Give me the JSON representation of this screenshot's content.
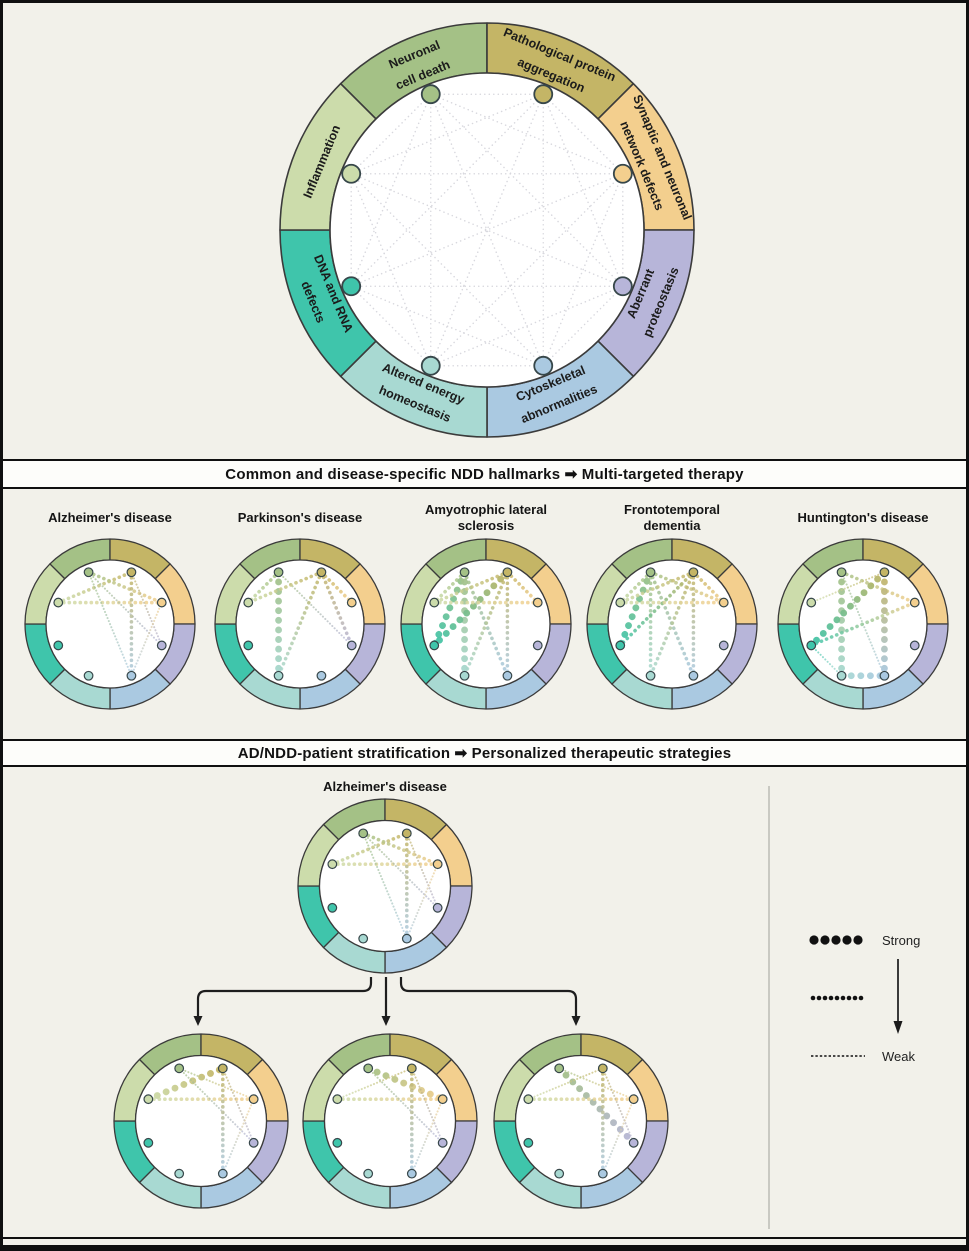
{
  "figure": {
    "background": "#f2f1ea",
    "border_color": "#101010",
    "header_band_color": "#fdfdfa"
  },
  "hallmarks": [
    {
      "id": "neuronal-cell-death",
      "label_lines": [
        "Neuronal",
        "cell death"
      ],
      "color": "#a4c186",
      "angle": 112.5
    },
    {
      "id": "pathological-aggregation",
      "label_lines": [
        "Pathological protein",
        "aggregation"
      ],
      "color": "#c4b566",
      "angle": 67.5
    },
    {
      "id": "synaptic-network-defects",
      "label_lines": [
        "Synaptic and neuronal",
        "network defects"
      ],
      "color": "#f3cf8e",
      "angle": 22.5
    },
    {
      "id": "aberrant-proteostasis",
      "label_lines": [
        "Aberrant",
        "proteostasis"
      ],
      "color": "#b7b5d9",
      "angle": -22.5
    },
    {
      "id": "cytoskeletal-abnormalities",
      "label_lines": [
        "Cytoskeletal",
        "abnormalities"
      ],
      "color": "#aac9e1",
      "angle": -67.5
    },
    {
      "id": "altered-energy-homeostasis",
      "label_lines": [
        "Altered energy",
        "homeostasis"
      ],
      "color": "#a8d9d2",
      "angle": -112.5
    },
    {
      "id": "dna-rna-defects",
      "label_lines": [
        "DNA and RNA",
        "defects"
      ],
      "color": "#3fc5ab",
      "angle": -157.5
    },
    {
      "id": "inflammation",
      "label_lines": [
        "Inflammation"
      ],
      "color": "#ccdcab",
      "angle": 157.5
    }
  ],
  "sections": {
    "middle_header": "Common and disease-specific NDD hallmarks ➡ Multi-targeted therapy",
    "bottom_header": "AD/NDD-patient stratification ➡ Personalized therapeutic strategies"
  },
  "diseases": [
    {
      "name": "Alzheimer's disease",
      "edges": [
        [
          7,
          2,
          "medium"
        ],
        [
          7,
          1,
          "medium"
        ],
        [
          0,
          2,
          "medium"
        ],
        [
          0,
          3,
          "weak"
        ],
        [
          0,
          4,
          "weak"
        ],
        [
          1,
          3,
          "weak"
        ],
        [
          1,
          4,
          "medium"
        ],
        [
          2,
          4,
          "weak"
        ]
      ]
    },
    {
      "name": "Parkinson's disease",
      "edges": [
        [
          0,
          7,
          "medium"
        ],
        [
          0,
          5,
          "strong"
        ],
        [
          0,
          3,
          "weak"
        ],
        [
          1,
          7,
          "medium"
        ],
        [
          1,
          2,
          "medium"
        ],
        [
          1,
          3,
          "medium"
        ],
        [
          1,
          5,
          "medium"
        ]
      ]
    },
    {
      "name": "Amyotrophic lateral\nsclerosis",
      "edges": [
        [
          0,
          7,
          "medium"
        ],
        [
          0,
          6,
          "strong"
        ],
        [
          0,
          5,
          "strong"
        ],
        [
          0,
          4,
          "medium"
        ],
        [
          1,
          7,
          "medium"
        ],
        [
          1,
          2,
          "medium"
        ],
        [
          1,
          6,
          "strong"
        ],
        [
          1,
          5,
          "medium"
        ],
        [
          1,
          4,
          "medium"
        ],
        [
          7,
          2,
          "medium"
        ]
      ]
    },
    {
      "name": "Frontotemporal\ndementia",
      "edges": [
        [
          0,
          7,
          "medium"
        ],
        [
          0,
          6,
          "strong"
        ],
        [
          0,
          5,
          "medium"
        ],
        [
          0,
          4,
          "medium"
        ],
        [
          0,
          2,
          "medium"
        ],
        [
          1,
          7,
          "medium"
        ],
        [
          1,
          2,
          "medium"
        ],
        [
          1,
          6,
          "medium"
        ],
        [
          1,
          5,
          "medium"
        ],
        [
          1,
          4,
          "medium"
        ],
        [
          7,
          2,
          "medium"
        ]
      ]
    },
    {
      "name": "Huntington's disease",
      "edges": [
        [
          0,
          5,
          "strong"
        ],
        [
          0,
          2,
          "medium"
        ],
        [
          0,
          4,
          "weak"
        ],
        [
          1,
          6,
          "strong"
        ],
        [
          1,
          4,
          "strong"
        ],
        [
          1,
          7,
          "weak"
        ],
        [
          6,
          2,
          "medium"
        ],
        [
          5,
          4,
          "strong"
        ],
        [
          6,
          5,
          "weak"
        ]
      ]
    }
  ],
  "stratification": {
    "parent_name": "Alzheimer's disease",
    "parent_edges": [
      [
        7,
        2,
        "medium"
      ],
      [
        7,
        1,
        "medium"
      ],
      [
        0,
        2,
        "medium"
      ],
      [
        0,
        3,
        "weak"
      ],
      [
        0,
        4,
        "weak"
      ],
      [
        1,
        3,
        "weak"
      ],
      [
        1,
        4,
        "medium"
      ],
      [
        2,
        4,
        "weak"
      ]
    ],
    "variants": [
      {
        "edges": [
          [
            7,
            1,
            "strong"
          ],
          [
            7,
            2,
            "medium"
          ],
          [
            0,
            2,
            "weak"
          ],
          [
            0,
            3,
            "weak"
          ],
          [
            1,
            3,
            "weak"
          ],
          [
            1,
            4,
            "medium"
          ],
          [
            2,
            4,
            "weak"
          ]
        ]
      },
      {
        "edges": [
          [
            0,
            2,
            "strong"
          ],
          [
            7,
            2,
            "medium"
          ],
          [
            7,
            1,
            "weak"
          ],
          [
            0,
            3,
            "weak"
          ],
          [
            1,
            3,
            "weak"
          ],
          [
            1,
            4,
            "medium"
          ],
          [
            2,
            4,
            "weak"
          ]
        ]
      },
      {
        "edges": [
          [
            0,
            3,
            "strong"
          ],
          [
            7,
            2,
            "medium"
          ],
          [
            7,
            1,
            "weak"
          ],
          [
            0,
            2,
            "weak"
          ],
          [
            1,
            3,
            "weak"
          ],
          [
            1,
            4,
            "medium"
          ],
          [
            2,
            4,
            "weak"
          ]
        ]
      }
    ]
  },
  "legend": {
    "strong_label": "Strong",
    "weak_label": "Weak",
    "levels": [
      "strong",
      "medium",
      "weak"
    ]
  }
}
